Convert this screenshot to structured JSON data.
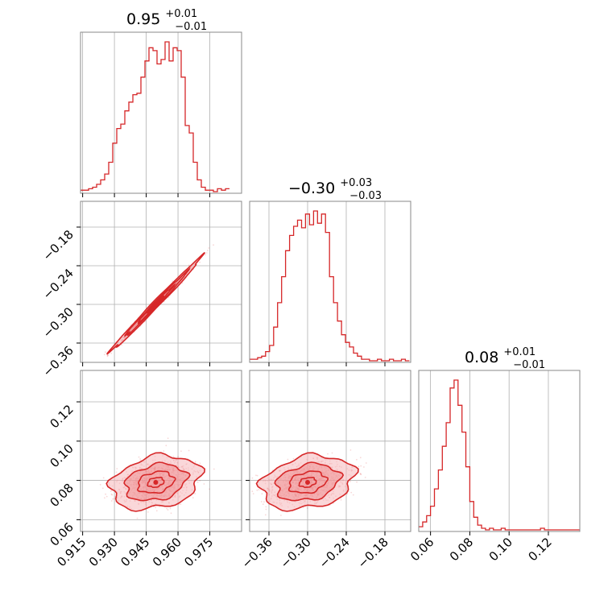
{
  "chart_data": {
    "type": "corner",
    "color": "#d62728",
    "fill_color": "#f5b7b9",
    "parameters": [
      {
        "title": {
          "median": "0.95",
          "plus": "+0.01",
          "minus": "−0.01"
        },
        "range": [
          0.914,
          0.99
        ],
        "ticks": [
          0.915,
          0.93,
          0.945,
          0.96,
          0.975
        ],
        "tick_labels": [
          "0.915",
          "0.930",
          "0.945",
          "0.960",
          "0.975"
        ],
        "median": 0.95,
        "histogram": {
          "bin_edges_start": 0.914,
          "bin_width": 0.0019,
          "counts": [
            1,
            1,
            2,
            3,
            5,
            8,
            12,
            20,
            33,
            43,
            46,
            55,
            61,
            66,
            67,
            78,
            89,
            98,
            96,
            87,
            90,
            102,
            89,
            98,
            96,
            78,
            45,
            40,
            20,
            8,
            3,
            1,
            1,
            0,
            2,
            1,
            2
          ]
        }
      },
      {
        "title": {
          "median": "−0.30",
          "plus": "+0.03",
          "minus": "−0.03"
        },
        "range": [
          -0.39,
          -0.14
        ],
        "ticks": [
          -0.36,
          -0.3,
          -0.24,
          -0.18
        ],
        "tick_labels": [
          "−0.36",
          "−0.30",
          "−0.24",
          "−0.18"
        ],
        "median": -0.3,
        "histogram": {
          "bin_edges_start": -0.39,
          "bin_width": 0.0062,
          "counts": [
            1,
            1,
            2,
            3,
            6,
            10,
            22,
            38,
            55,
            72,
            82,
            88,
            92,
            87,
            96,
            89,
            98,
            90,
            96,
            84,
            55,
            38,
            26,
            17,
            12,
            9,
            5,
            3,
            1,
            1,
            0,
            0,
            1,
            0,
            0,
            1,
            0,
            0,
            1,
            0
          ]
        }
      },
      {
        "title": {
          "median": "0.08",
          "plus": "+0.01",
          "minus": "−0.01"
        },
        "range": [
          0.054,
          0.136
        ],
        "ticks": [
          0.06,
          0.08,
          0.1,
          0.12
        ],
        "tick_labels": [
          "0.06",
          "0.08",
          "0.10",
          "0.12"
        ],
        "median": 0.08,
        "histogram": {
          "bin_edges_start": 0.054,
          "bin_width": 0.002,
          "counts": [
            2,
            5,
            9,
            15,
            26,
            38,
            53,
            68,
            90,
            95,
            79,
            62,
            40,
            18,
            8,
            3,
            1,
            0,
            1,
            0,
            0,
            1,
            0,
            0,
            0,
            0,
            0,
            0,
            0,
            0,
            0,
            1,
            0,
            0,
            0,
            0,
            0,
            0,
            0,
            0,
            0
          ]
        }
      }
    ],
    "correlations": {
      "p0_p1": {
        "center": [
          0.9495,
          -0.3
        ],
        "sigma": [
          0.0085,
          0.029
        ],
        "rho": 0.995
      },
      "p0_p2": {
        "center": [
          0.9495,
          0.079
        ],
        "sigma": [
          0.0085,
          0.0055
        ],
        "rho": 0.25
      },
      "p1_p2": {
        "center": [
          -0.3,
          0.079
        ],
        "sigma": [
          0.029,
          0.0055
        ],
        "rho": 0.25
      }
    },
    "grid": true
  }
}
